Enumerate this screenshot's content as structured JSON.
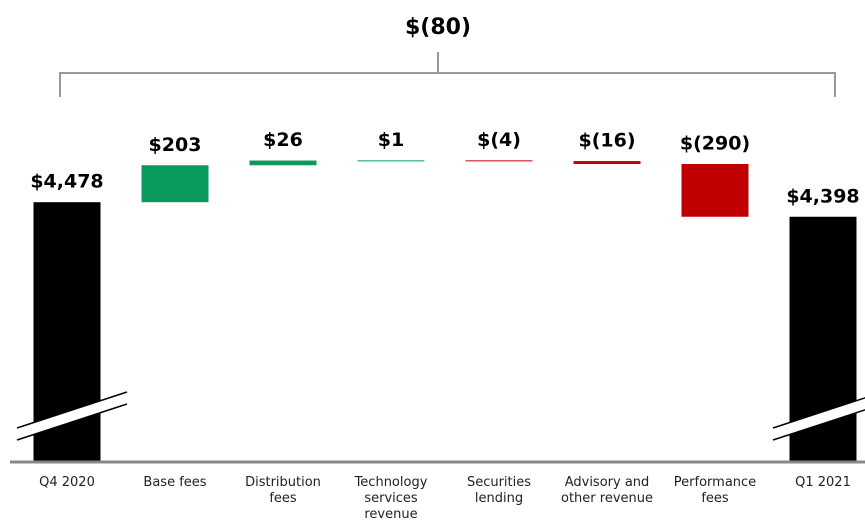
{
  "chart_data": {
    "type": "waterfall",
    "categories": [
      "Q4 2020",
      "Base fees",
      "Distribution fees",
      "Technology services revenue",
      "Securities lending",
      "Advisory and other revenue",
      "Performance fees",
      "Q1 2021"
    ],
    "values": [
      4478,
      203,
      26,
      1,
      -4,
      -16,
      -290,
      4398
    ],
    "value_labels": [
      "$4,478",
      "$203",
      "$26",
      "$1",
      "$(4)",
      "$(16)",
      "$(290)",
      "$4,398"
    ],
    "is_total": [
      true,
      false,
      false,
      false,
      false,
      false,
      false,
      true
    ],
    "total_color": "#000000",
    "increase_color": "#0a9a5c",
    "decrease_color": "#c00000",
    "ylim": [
      3050,
      4600
    ],
    "axis_break": true,
    "bracket": {
      "value": -80,
      "label": "$(80)"
    }
  }
}
